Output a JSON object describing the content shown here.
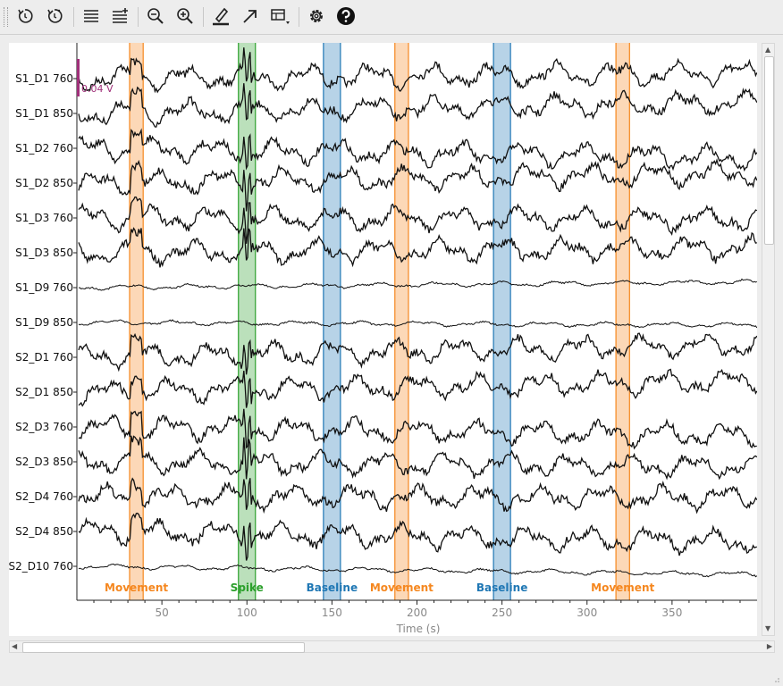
{
  "toolbar": {
    "buttons": [
      {
        "name": "rewind-icon",
        "tooltip": ""
      },
      {
        "name": "fast-forward-icon",
        "tooltip": ""
      },
      {
        "name": "fewer-channels-icon",
        "tooltip": ""
      },
      {
        "name": "more-channels-icon",
        "tooltip": ""
      },
      {
        "name": "zoom-out-icon",
        "tooltip": ""
      },
      {
        "name": "zoom-in-icon",
        "tooltip": ""
      },
      {
        "name": "annotate-pen-icon",
        "tooltip": ""
      },
      {
        "name": "arrow-icon",
        "tooltip": ""
      },
      {
        "name": "projector-icon",
        "tooltip": ""
      },
      {
        "name": "gear-icon",
        "tooltip": ""
      },
      {
        "name": "help-icon",
        "tooltip": ""
      }
    ]
  },
  "plot": {
    "scale_bar_label": "0.04 V",
    "scale_bar_color": "#a0307a",
    "xlabel": "Time (s)",
    "xlim": [
      0,
      400
    ],
    "xticks": [
      50,
      100,
      150,
      200,
      250,
      300,
      350
    ],
    "channels": [
      "S1_D1 760",
      "S1_D1 850",
      "S1_D2 760",
      "S1_D2 850",
      "S1_D3 760",
      "S1_D3 850",
      "S1_D9 760",
      "S1_D9 850",
      "S2_D1 760",
      "S2_D1 850",
      "S2_D3 760",
      "S2_D3 850",
      "S2_D4 760",
      "S2_D4 850",
      "S2_D10 760"
    ],
    "annotations": [
      {
        "label": "Movement",
        "start": 31,
        "end": 39,
        "color": "#f5871f"
      },
      {
        "label": "Spike",
        "start": 95,
        "end": 105,
        "color": "#2ca02c"
      },
      {
        "label": "Baseline",
        "start": 145,
        "end": 155,
        "color": "#1f77b4"
      },
      {
        "label": "Movement",
        "start": 187,
        "end": 195,
        "color": "#f5871f"
      },
      {
        "label": "Baseline",
        "start": 245,
        "end": 255,
        "color": "#1f77b4"
      },
      {
        "label": "Movement",
        "start": 317,
        "end": 325,
        "color": "#f5871f"
      }
    ]
  },
  "scrollbars": {
    "vertical_fraction": 0.33,
    "horizontal_fraction": 0.38
  }
}
